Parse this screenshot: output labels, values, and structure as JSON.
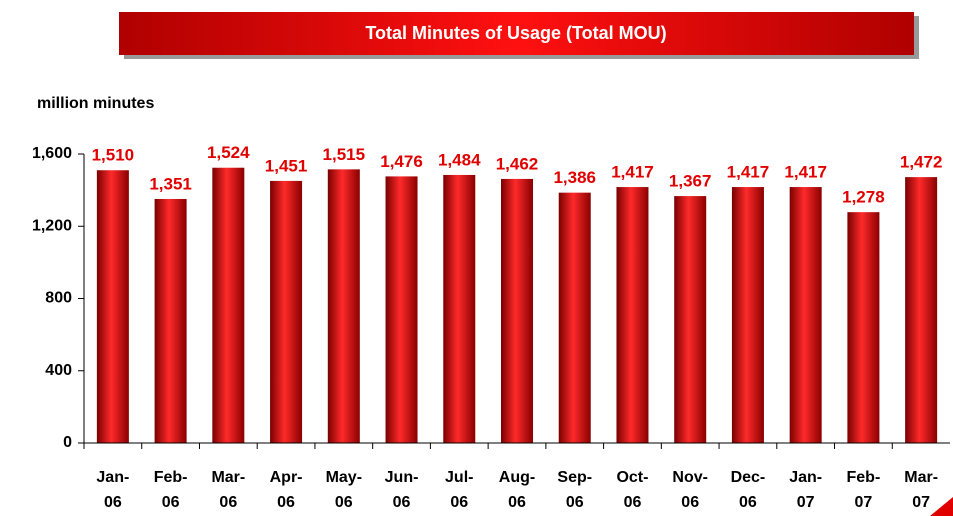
{
  "chart_data": {
    "type": "bar",
    "title": "Total Minutes of Usage (Total MOU)",
    "y_label": "million minutes",
    "categories": [
      "Jan-06",
      "Feb-06",
      "Mar-06",
      "Apr-06",
      "May-06",
      "Jun-06",
      "Jul-06",
      "Aug-06",
      "Sep-06",
      "Oct-06",
      "Nov-06",
      "Dec-06",
      "Jan-07",
      "Feb-07",
      "Mar-07"
    ],
    "values": [
      1510,
      1351,
      1524,
      1451,
      1515,
      1476,
      1484,
      1462,
      1386,
      1417,
      1367,
      1417,
      1417,
      1278,
      1472
    ],
    "value_labels": [
      "1,510",
      "1,351",
      "1,524",
      "1,451",
      "1,515",
      "1,476",
      "1,484",
      "1,462",
      "1,386",
      "1,417",
      "1,367",
      "1,417",
      "1,417",
      "1,278",
      "1,472"
    ],
    "color": "#e00000",
    "ylim": [
      0,
      1600
    ],
    "yticks": [
      0,
      400,
      800,
      {
        "value": 1200,
        "label": "1,200"
      },
      {
        "value": 1600,
        "label": "1,600"
      }
    ],
    "grid": false
  }
}
